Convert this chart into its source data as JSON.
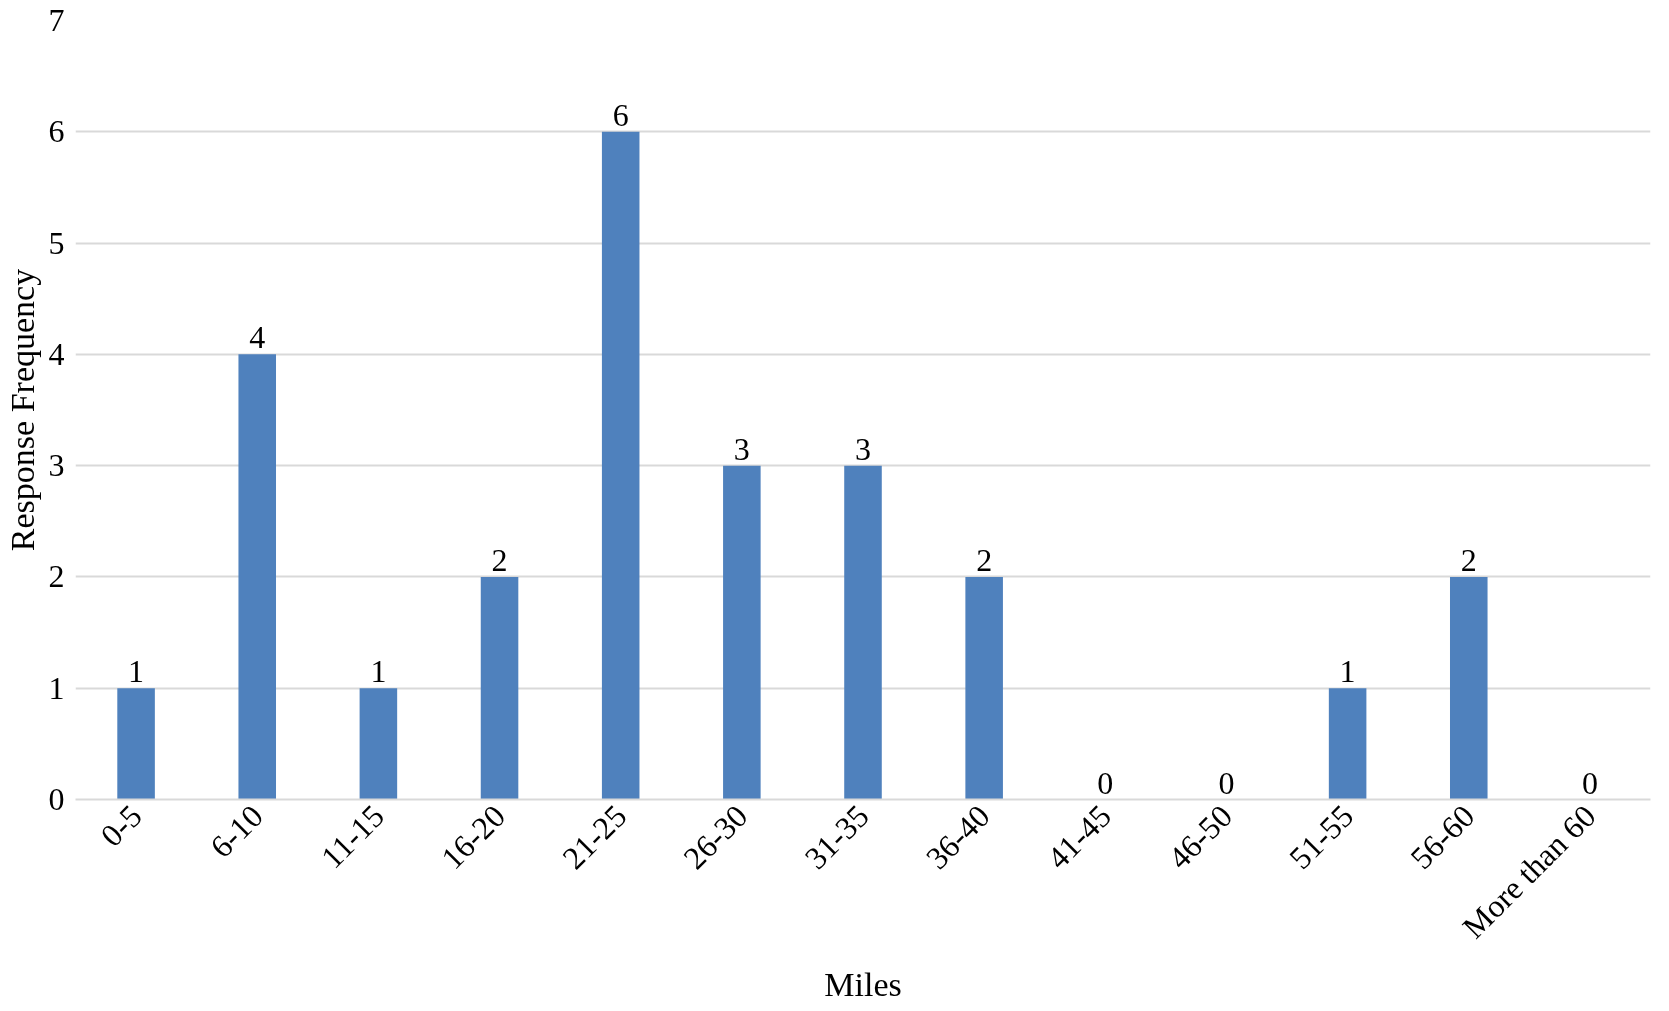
{
  "chart_data": {
    "type": "bar",
    "xlabel": "Miles",
    "ylabel": "Response Frequency",
    "categories": [
      "0-5",
      "6-10",
      "11-15",
      "16-20",
      "21-25",
      "26-30",
      "31-35",
      "36-40",
      "41-45",
      "46-50",
      "51-55",
      "56-60",
      "More than 60"
    ],
    "values": [
      1,
      4,
      1,
      2,
      6,
      3,
      3,
      2,
      0,
      0,
      1,
      2,
      0
    ],
    "color": "#4f81bd",
    "ylim": [
      0,
      7
    ],
    "yticks": [
      0,
      1,
      2,
      3,
      4,
      5,
      6,
      7
    ],
    "grid": "y",
    "data_labels": true
  }
}
